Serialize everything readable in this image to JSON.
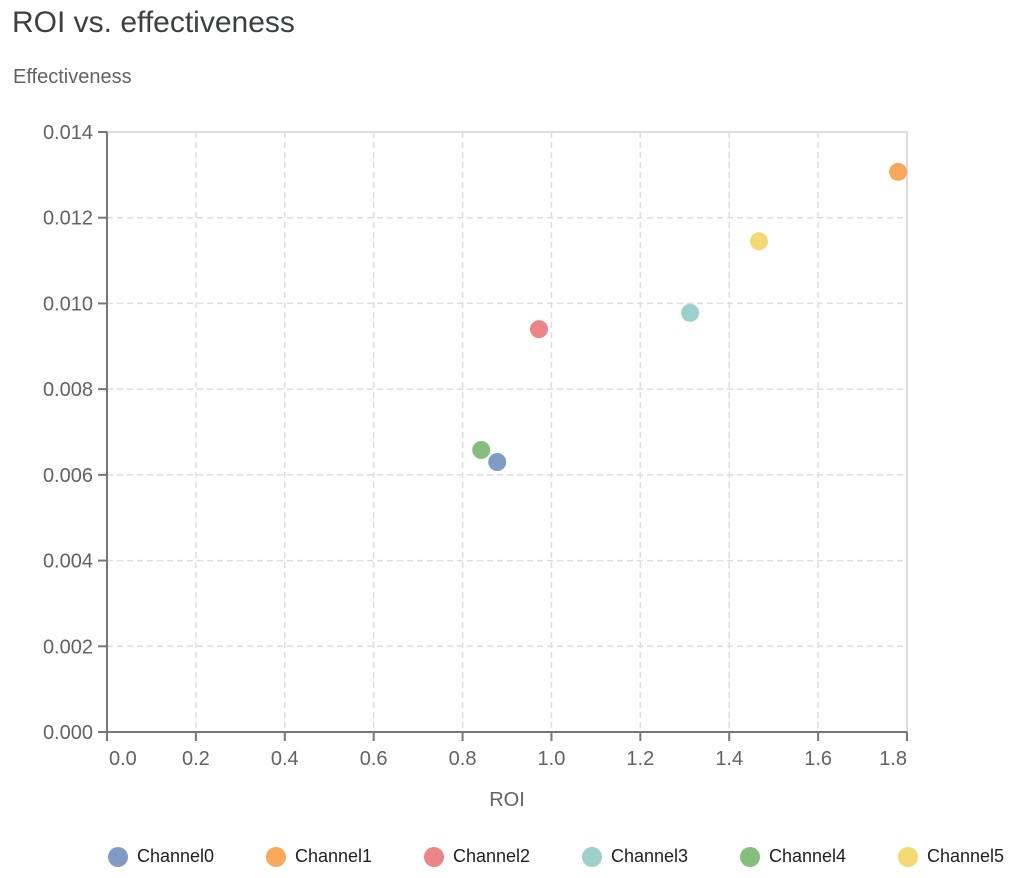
{
  "chart_data": {
    "type": "scatter",
    "title": "ROI vs. effectiveness",
    "xlabel": "ROI",
    "ylabel": "Effectiveness",
    "xlim": [
      0,
      1.8
    ],
    "ylim": [
      0,
      0.014
    ],
    "grid": true,
    "legend_position": "bottom",
    "x_ticks": [
      "0.0",
      "0.2",
      "0.4",
      "0.6",
      "0.8",
      "1.0",
      "1.2",
      "1.4",
      "1.6",
      "1.8"
    ],
    "y_ticks": [
      "0.000",
      "0.002",
      "0.004",
      "0.006",
      "0.008",
      "0.010",
      "0.012",
      "0.014"
    ],
    "series": [
      {
        "name": "Channel0",
        "x": 0.878,
        "y": 0.0063,
        "color": "#7f9cc4"
      },
      {
        "name": "Channel1",
        "x": 1.78,
        "y": 0.01307,
        "color": "#f8a85c"
      },
      {
        "name": "Channel2",
        "x": 0.972,
        "y": 0.0094,
        "color": "#ec8585"
      },
      {
        "name": "Channel3",
        "x": 1.312,
        "y": 0.00978,
        "color": "#9dcfcc"
      },
      {
        "name": "Channel4",
        "x": 0.842,
        "y": 0.00658,
        "color": "#86bf7d"
      },
      {
        "name": "Channel5",
        "x": 1.467,
        "y": 0.01145,
        "color": "#f2d974"
      }
    ]
  }
}
